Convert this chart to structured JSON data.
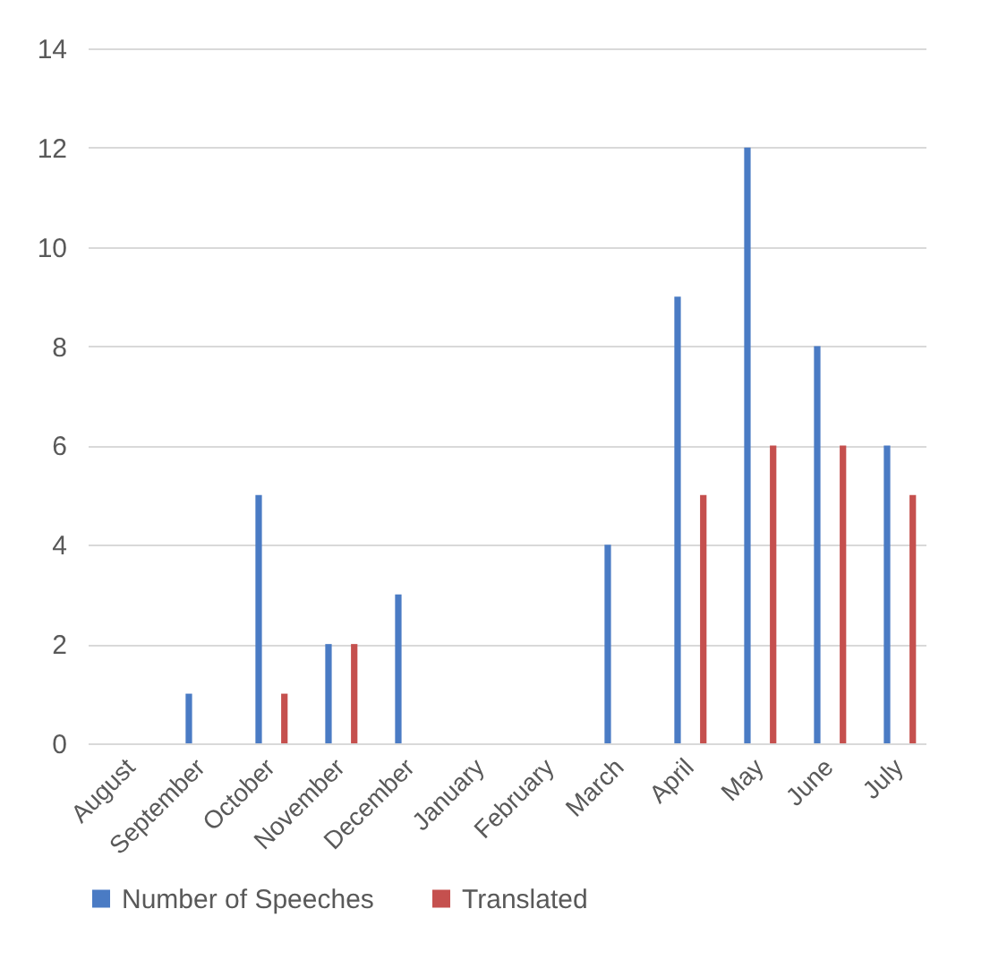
{
  "chart_data": {
    "type": "bar",
    "categories": [
      "August",
      "September",
      "October",
      "November",
      "December",
      "January",
      "February",
      "March",
      "April",
      "May",
      "June",
      "July"
    ],
    "series": [
      {
        "name": "Number of Speeches",
        "color": "#4a7bc4",
        "values": [
          0,
          1,
          5,
          2,
          3,
          0,
          0,
          4,
          9,
          12,
          8,
          6
        ]
      },
      {
        "name": "Translated",
        "color": "#c5504e",
        "values": [
          0,
          0,
          1,
          2,
          0,
          0,
          0,
          0,
          5,
          6,
          6,
          5
        ]
      }
    ],
    "ylim": [
      0,
      14
    ],
    "yticks": [
      0,
      2,
      4,
      6,
      8,
      10,
      12,
      14
    ],
    "grid": "y",
    "legend": "bottom"
  }
}
